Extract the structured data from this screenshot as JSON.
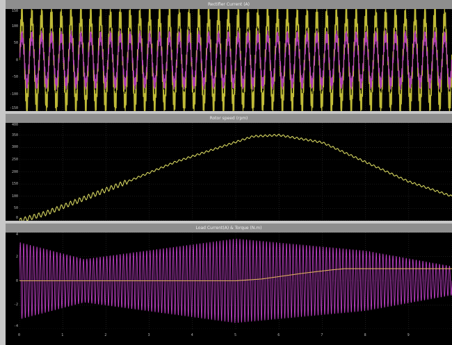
{
  "chart_data": [
    {
      "type": "line",
      "title": "Rectifier Current (A)",
      "xlim": [
        0,
        10
      ],
      "ylim": [
        -150,
        150
      ],
      "y_ticks": [
        "150",
        "100",
        "50",
        "0",
        "-50",
        "-100",
        "-150"
      ],
      "grid": true,
      "series": [
        {
          "color": "#c9c43a",
          "shape": "pulsed",
          "amplitude": 130,
          "cycles": 44
        },
        {
          "color": "#c040c8",
          "shape": "pulsed",
          "amplitude": 70,
          "cycles": 44
        }
      ]
    },
    {
      "type": "line",
      "title": "Rotor speed (rpm)",
      "xlim": [
        0,
        10
      ],
      "ylim": [
        0,
        400
      ],
      "y_ticks": [
        "400",
        "350",
        "300",
        "250",
        "200",
        "150",
        "100",
        "50",
        "0"
      ],
      "grid": true,
      "series": [
        {
          "color": "#d8d860",
          "x": [
            0,
            0.6,
            1.4,
            2.5,
            3.6,
            4.8,
            5.4,
            6.0,
            7.0,
            8.0,
            9.0,
            10.0
          ],
          "y": [
            0,
            30,
            85,
            160,
            240,
            310,
            345,
            350,
            320,
            240,
            160,
            100
          ]
        }
      ]
    },
    {
      "type": "line",
      "title": "Load Current(A) & Torque (N.m)",
      "xlim": [
        0,
        10
      ],
      "ylim": [
        -4,
        4
      ],
      "y_ticks": [
        "4",
        "2",
        "0",
        "-2",
        "-4"
      ],
      "x_ticks": [
        "0",
        "1",
        "2",
        "3",
        "4",
        "5",
        "6",
        "7",
        "8",
        "9"
      ],
      "grid": true,
      "series": [
        {
          "color": "#c040c8",
          "shape": "burst",
          "cycles": 130,
          "envelope_x": [
            0,
            1.5,
            5.0,
            8.0,
            10.0
          ],
          "envelope_y": [
            3.2,
            1.8,
            3.5,
            2.5,
            1.2
          ]
        },
        {
          "color": "#e0b060",
          "x": [
            0,
            1.5,
            3.0,
            5.0,
            5.6,
            6.5,
            7.2,
            7.5,
            10.0
          ],
          "y": [
            0,
            0,
            0,
            0,
            0.15,
            0.6,
            0.9,
            1.0,
            1.0
          ]
        }
      ]
    }
  ]
}
